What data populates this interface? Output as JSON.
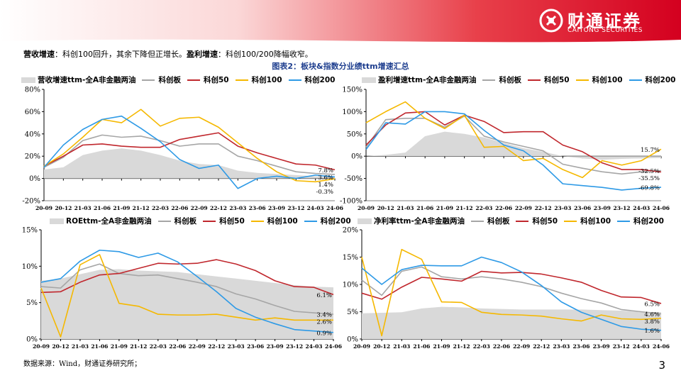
{
  "header": {
    "brand_cn": "财通证券",
    "brand_en": "CAITONG SECURITIES",
    "accent_color": "#e6002d"
  },
  "summary": {
    "rev_label": "营收增速",
    "rev_text": "：科创100回升，其余下降但正增长。",
    "profit_label": "盈利增速",
    "profit_text": "：科创100/200降幅收窄。"
  },
  "figure_title": "图表2：板块&指数分业绩ttm增速汇总",
  "source": "数据来源：Wind，财通证券研究所；",
  "page_number": "3",
  "colors": {
    "全A非金融两油": "#d9d9d9",
    "科创板": "#a6a6a6",
    "科创50": "#c0272d",
    "科创100": "#f5b800",
    "科创200": "#2e9ae6"
  },
  "chart_data": [
    {
      "type": "line",
      "title": "营收增速ttm",
      "x": [
        "20-09",
        "20-12",
        "21-03",
        "21-06",
        "21-09",
        "21-12",
        "22-03",
        "22-06",
        "22-09",
        "22-12",
        "23-03",
        "23-06",
        "23-09",
        "23-12",
        "24-03",
        "24-06"
      ],
      "ylim": [
        -20,
        80
      ],
      "yticks": [
        -20,
        0,
        20,
        40,
        60,
        80
      ],
      "yformat": "pct",
      "series": [
        {
          "name": "营收增速ttm-全A非金融两油",
          "kind": "area",
          "values": [
            8,
            10,
            21,
            25,
            27,
            25,
            21,
            16,
            13,
            12,
            7,
            5,
            4,
            3,
            2,
            1.1
          ]
        },
        {
          "name": "科创板",
          "values": [
            10,
            19,
            34,
            39,
            37,
            38,
            34,
            29,
            31,
            31,
            20,
            16,
            11,
            6,
            4.5,
            3.6
          ]
        },
        {
          "name": "科创50",
          "values": [
            11,
            20,
            30,
            31,
            29,
            28,
            28,
            35,
            38,
            41,
            29,
            23,
            18,
            13,
            12,
            7.8
          ]
        },
        {
          "name": "科创100",
          "values": [
            11,
            22,
            37,
            53,
            50,
            62,
            47,
            54,
            55,
            46,
            32,
            18,
            6,
            -2,
            -3,
            -0.3
          ]
        },
        {
          "name": "科创200",
          "values": [
            10,
            30,
            44,
            53,
            56,
            45,
            33,
            17,
            9,
            12,
            -9,
            0,
            2,
            0,
            3,
            1.4
          ]
        }
      ],
      "end_labels": [
        "7.8%",
        "3.6%",
        "1.4%",
        "-0.3%"
      ]
    },
    {
      "type": "line",
      "title": "盈利增速ttm",
      "x": [
        "20-09",
        "20-12",
        "21-03",
        "21-06",
        "21-09",
        "21-12",
        "22-03",
        "22-06",
        "22-09",
        "22-12",
        "23-03",
        "23-06",
        "23-09",
        "23-12",
        "24-03",
        "24-06"
      ],
      "ylim": [
        -100,
        150
      ],
      "yticks": [
        -100,
        -50,
        0,
        50,
        100,
        150
      ],
      "yformat": "pct",
      "series": [
        {
          "name": "盈利增速ttm-全A非金融两油",
          "kind": "area",
          "values": [
            0,
            3,
            8,
            45,
            55,
            50,
            42,
            30,
            18,
            10,
            0,
            -5,
            -8,
            -6,
            -5,
            -4
          ]
        },
        {
          "name": "科创板",
          "values": [
            20,
            82,
            85,
            85,
            65,
            90,
            45,
            32,
            22,
            12,
            -18,
            -27,
            -35,
            -40,
            -35,
            -32.5
          ]
        },
        {
          "name": "科创50",
          "values": [
            25,
            70,
            97,
            100,
            70,
            92,
            78,
            53,
            55,
            55,
            25,
            10,
            -15,
            -30,
            -30,
            -35.5
          ]
        },
        {
          "name": "科创100",
          "values": [
            75,
            100,
            122,
            85,
            62,
            92,
            20,
            22,
            -10,
            -5,
            -30,
            -48,
            -10,
            -20,
            -10,
            15.7
          ]
        },
        {
          "name": "科创200",
          "values": [
            15,
            75,
            72,
            100,
            100,
            95,
            58,
            25,
            12,
            -20,
            -62,
            -66,
            -70,
            -76,
            -72,
            -69.8
          ]
        }
      ],
      "end_labels": [
        "15.7%",
        "-32.5%",
        "-35.5%",
        "-69.8%"
      ]
    },
    {
      "type": "line",
      "title": "ROEttm",
      "x": [
        "20-09",
        "20-12",
        "21-03",
        "21-06",
        "21-09",
        "21-12",
        "22-03",
        "22-06",
        "22-09",
        "22-12",
        "23-03",
        "23-06",
        "23-09",
        "23-12",
        "24-03",
        "24-06"
      ],
      "ylim": [
        0,
        15
      ],
      "yticks": [
        0,
        5,
        10,
        15
      ],
      "yformat": "pct0",
      "series": [
        {
          "name": "ROEttm-全A非金融两油",
          "kind": "area",
          "values": [
            8,
            8.3,
            8.9,
            9.5,
            9.6,
            9.4,
            9.3,
            9.2,
            8.9,
            8.6,
            8.3,
            8.0,
            7.7,
            7.4,
            7.2,
            7.1
          ]
        },
        {
          "name": "科创板",
          "values": [
            7.2,
            7.0,
            9.5,
            10.3,
            9.0,
            8.7,
            8.8,
            8.3,
            7.8,
            7.2,
            6.2,
            5.5,
            4.6,
            3.8,
            3.6,
            3.4
          ]
        },
        {
          "name": "科创50",
          "values": [
            6.4,
            6.5,
            7.8,
            8.8,
            9.0,
            9.7,
            10.4,
            10.3,
            10.4,
            10.9,
            10.3,
            9.4,
            8.0,
            7.2,
            7.1,
            6.1
          ]
        },
        {
          "name": "科创100",
          "values": [
            7.0,
            0.3,
            10.2,
            11.6,
            4.9,
            4.5,
            3.4,
            3.3,
            3.3,
            3.4,
            3.0,
            2.6,
            2.9,
            2.6,
            2.6,
            2.6
          ]
        },
        {
          "name": "科创200",
          "values": [
            7.8,
            8.3,
            10.7,
            12.2,
            12.0,
            11.2,
            11.8,
            10.6,
            8.6,
            6.5,
            4.2,
            3.0,
            2.1,
            1.3,
            1.1,
            0.9
          ]
        }
      ],
      "end_labels": [
        "6.1%",
        "3.4%",
        "2.6%",
        "0.9%"
      ]
    },
    {
      "type": "line",
      "title": "净利率ttm",
      "x": [
        "20-09",
        "20-12",
        "21-03",
        "21-06",
        "21-09",
        "21-12",
        "22-03",
        "22-06",
        "22-09",
        "22-12",
        "23-03",
        "23-06",
        "23-09",
        "23-12",
        "24-03",
        "24-06"
      ],
      "ylim": [
        0,
        20
      ],
      "yticks": [
        0,
        5,
        10,
        15,
        20
      ],
      "yformat": "pct0",
      "series": [
        {
          "name": "净利率ttm-全A非金融两油",
          "kind": "area",
          "values": [
            4.7,
            4.8,
            4.9,
            5.6,
            5.9,
            5.8,
            5.6,
            5.5,
            5.4,
            5.4,
            5.4,
            5.4,
            5.3,
            5.2,
            5.0,
            4.9
          ]
        },
        {
          "name": "科创板",
          "values": [
            10.8,
            8.0,
            12.4,
            13.2,
            11.4,
            11.0,
            11.4,
            11.0,
            10.4,
            9.6,
            8.4,
            7.4,
            6.6,
            5.4,
            5.0,
            4.6
          ]
        },
        {
          "name": "科创50",
          "values": [
            8.4,
            7.3,
            9.5,
            11.3,
            11.0,
            10.6,
            12.4,
            12.1,
            12.2,
            11.9,
            11.2,
            10.4,
            8.9,
            7.7,
            7.6,
            6.5
          ]
        },
        {
          "name": "科创100",
          "values": [
            15.0,
            0.6,
            16.4,
            14.6,
            6.8,
            6.7,
            4.9,
            4.5,
            4.4,
            4.2,
            3.7,
            3.3,
            4.4,
            3.7,
            3.6,
            3.8
          ]
        },
        {
          "name": "科创200",
          "values": [
            13.0,
            10.0,
            12.7,
            13.5,
            13.4,
            13.4,
            15.0,
            14.0,
            12.3,
            9.8,
            6.8,
            4.9,
            3.6,
            2.3,
            1.8,
            1.6
          ]
        }
      ],
      "end_labels": [
        "6.5%",
        "4.6%",
        "3.8%",
        "1.6%"
      ]
    }
  ]
}
